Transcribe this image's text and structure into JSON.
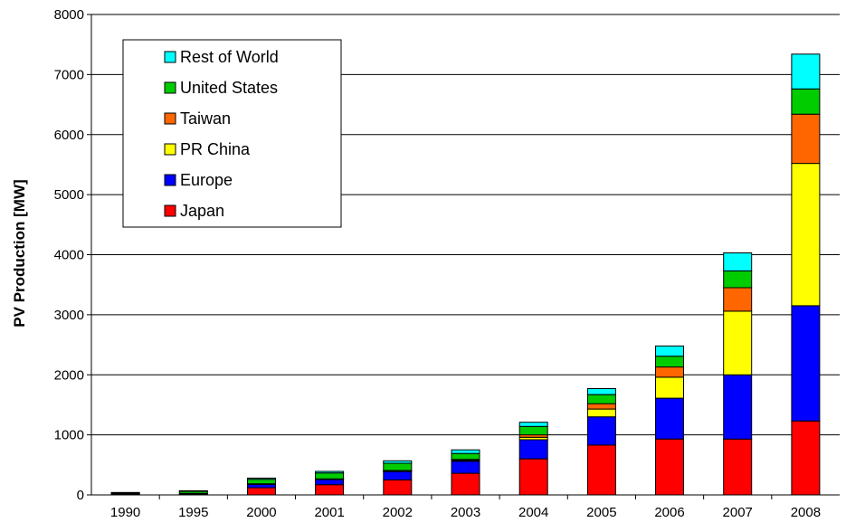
{
  "chart_data": {
    "type": "bar",
    "stacked": true,
    "title": "",
    "xlabel": "",
    "ylabel": "PV Production [MW]",
    "ylim": [
      0,
      8000
    ],
    "yticks": [
      "0",
      "1000",
      "2000",
      "3000",
      "4000",
      "5000",
      "6000",
      "7000",
      "8000"
    ],
    "grid": true,
    "legend_position": "top-left",
    "categories": [
      "1990",
      "1995",
      "2000",
      "2001",
      "2002",
      "2003",
      "2004",
      "2005",
      "2006",
      "2007",
      "2008"
    ],
    "series": [
      {
        "name": "Japan",
        "color": "#ff0000",
        "values": [
          10,
          10,
          120,
          170,
          250,
          360,
          600,
          830,
          930,
          930,
          1230
        ]
      },
      {
        "name": "Europe",
        "color": "#0000ff",
        "values": [
          10,
          15,
          60,
          90,
          140,
          200,
          320,
          470,
          680,
          1070,
          1920
        ]
      },
      {
        "name": "PR China",
        "color": "#ffff00",
        "values": [
          0,
          0,
          3,
          3,
          10,
          15,
          40,
          130,
          350,
          1060,
          2370
        ]
      },
      {
        "name": "Taiwan",
        "color": "#ff6600",
        "values": [
          0,
          0,
          2,
          3,
          8,
          15,
          40,
          90,
          170,
          390,
          820
        ]
      },
      {
        "name": "United States",
        "color": "#00cc00",
        "values": [
          15,
          35,
          75,
          100,
          120,
          100,
          140,
          150,
          180,
          280,
          420
        ]
      },
      {
        "name": "Rest of World",
        "color": "#00ffff",
        "values": [
          5,
          10,
          20,
          25,
          40,
          60,
          70,
          100,
          170,
          300,
          580
        ]
      }
    ]
  }
}
